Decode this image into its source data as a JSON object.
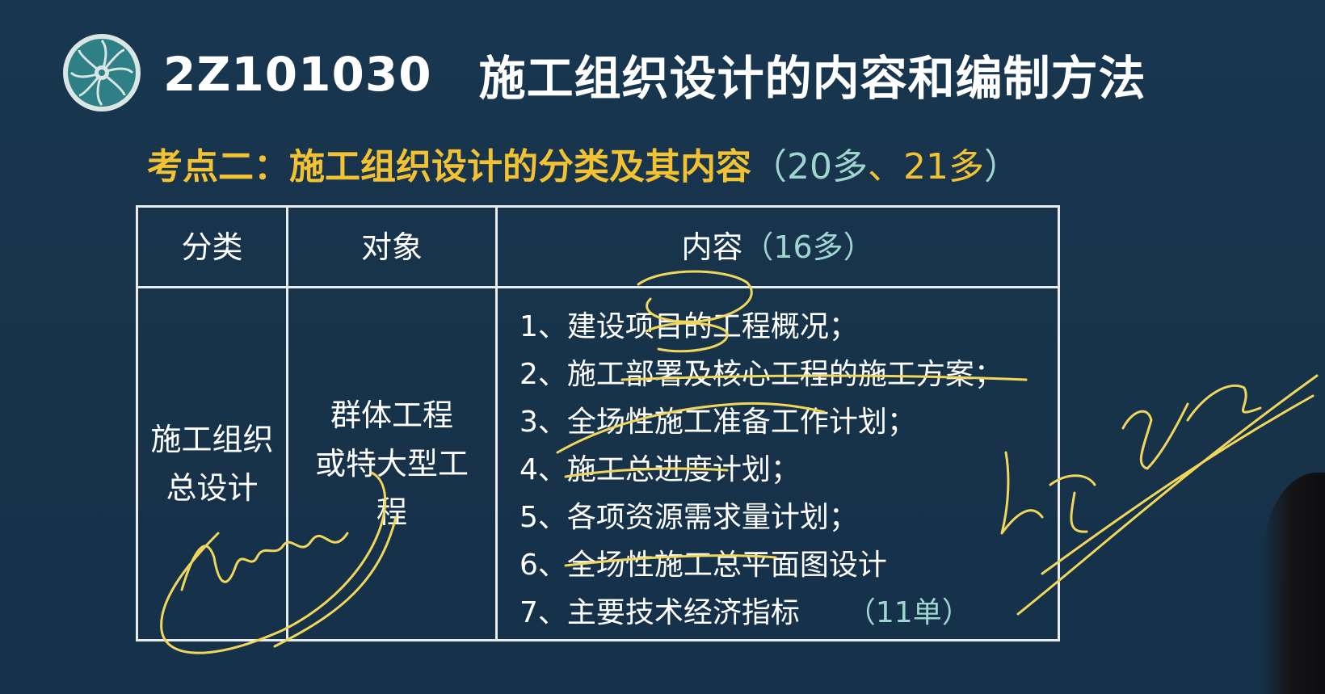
{
  "slide": {
    "code": "2Z101030",
    "title": "施工组织设计的内容和编制方法",
    "subtitle_main": "考点二：施工组织设计的分类及其内容",
    "subtitle_note_open": "（",
    "subtitle_note_20": "20多",
    "subtitle_note_sep": "、",
    "subtitle_note_21": "21多",
    "subtitle_note_close": "）"
  },
  "table": {
    "headers": {
      "category": "分类",
      "object": "对象",
      "content": "内容",
      "content_note": "（16多）"
    },
    "row": {
      "category_line1": "施工组织",
      "category_line2": "总设计",
      "object_line1": "群体工程",
      "object_line2": "或特大型工",
      "object_line3": "程"
    },
    "contents": [
      "1、建设项目的工程概况；",
      "2、施工部署及核心工程的施工方案；",
      "3、全场性施工准备工作计划；",
      "4、施工总进度计划；",
      "5、各项资源需求量计划；",
      "6、全场性施工总平面图设计",
      "7、主要技术经济指标"
    ],
    "last_note": "（11单）"
  },
  "colors": {
    "background": "#17334a",
    "title": "#ffffff",
    "subtitle": "#f2c233",
    "note": "#9fd5cf",
    "ink": "#f0d65a"
  },
  "icons": {
    "logo": "circular-emblem-logo"
  }
}
